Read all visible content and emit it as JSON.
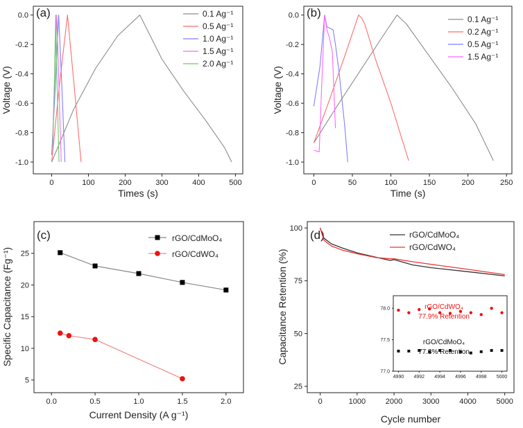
{
  "chart_data": [
    {
      "panel": "(a)",
      "type": "line",
      "xlabel": "Times (s)",
      "ylabel": "Voltage (V)",
      "xlim": [
        -50,
        520
      ],
      "ylim": [
        -1.08,
        0.06
      ],
      "xticks": [
        "0",
        "100",
        "200",
        "300",
        "400",
        "500"
      ],
      "yticks": [
        "0.0",
        "-0.2",
        "-0.4",
        "-0.6",
        "-0.8",
        "-1.0"
      ],
      "legend": [
        {
          "label": "0.1 Ag⁻¹",
          "color": "#8c8c8c"
        },
        {
          "label": "0.5 Ag⁻¹",
          "color": "#ff6b6b"
        },
        {
          "label": "1.0 Ag⁻¹",
          "color": "#7f7fff"
        },
        {
          "label": "1.5 Ag⁻¹",
          "color": "#ff66ff"
        },
        {
          "label": "2.0 Ag⁻¹",
          "color": "#5fcf5f"
        }
      ],
      "series": [
        {
          "name": "0.1 Ag-1",
          "color": "#8c8c8c",
          "x": [
            0,
            60,
            120,
            180,
            240,
            300,
            360,
            420,
            470,
            490
          ],
          "y": [
            -1.0,
            -0.64,
            -0.36,
            -0.14,
            0.0,
            -0.3,
            -0.52,
            -0.72,
            -0.9,
            -1.0
          ]
        },
        {
          "name": "0.5 Ag-1",
          "color": "#ff6b6b",
          "x": [
            0,
            20,
            43,
            60,
            80
          ],
          "y": [
            -1.0,
            -0.5,
            0.0,
            -0.45,
            -1.0
          ]
        },
        {
          "name": "1.0 Ag-1",
          "color": "#7f7fff",
          "x": [
            0,
            10,
            19,
            28,
            36
          ],
          "y": [
            -0.95,
            -0.48,
            0.0,
            -0.5,
            -1.0
          ]
        },
        {
          "name": "1.5 Ag-1",
          "color": "#ff66ff",
          "x": [
            2,
            8,
            14,
            20,
            26
          ],
          "y": [
            -0.9,
            -0.45,
            0.0,
            -0.5,
            -1.0
          ]
        },
        {
          "name": "2.0 Ag-1",
          "color": "#5fcf5f",
          "x": [
            3,
            8,
            11,
            15,
            20
          ],
          "y": [
            -0.9,
            -0.4,
            0.0,
            -0.5,
            -1.0
          ]
        }
      ]
    },
    {
      "panel": "(b)",
      "type": "line",
      "xlabel": "Time (s)",
      "ylabel": "Voltage (V)",
      "xlim": [
        -13,
        257
      ],
      "ylim": [
        -1.08,
        0.06
      ],
      "xticks": [
        "0",
        "50",
        "100",
        "150",
        "200",
        "250"
      ],
      "yticks": [
        "0.0",
        "-0.2",
        "-0.4",
        "-0.6",
        "-0.8",
        "-1.0"
      ],
      "legend": [
        {
          "label": "0.1 Ag⁻¹",
          "color": "#8c8c8c"
        },
        {
          "label": "0.2 Ag⁻¹",
          "color": "#ff6b6b"
        },
        {
          "label": "0.5 Ag⁻¹",
          "color": "#7f7fff"
        },
        {
          "label": "1.5 Ag⁻¹",
          "color": "#ff66ff"
        }
      ],
      "series": [
        {
          "name": "0.1 Ag-1",
          "color": "#8c8c8c",
          "x": [
            0,
            30,
            60,
            90,
            108,
            112,
            120,
            150,
            180,
            210,
            233
          ],
          "y": [
            -0.87,
            -0.62,
            -0.38,
            -0.14,
            0.0,
            -0.02,
            -0.06,
            -0.28,
            -0.5,
            -0.74,
            -0.99
          ]
        },
        {
          "name": "0.2 Ag-1",
          "color": "#ff6b6b",
          "x": [
            0,
            20,
            40,
            58,
            62,
            66,
            80,
            100,
            123
          ],
          "y": [
            -0.87,
            -0.58,
            -0.28,
            0.0,
            -0.02,
            -0.06,
            -0.3,
            -0.6,
            -0.99
          ]
        },
        {
          "name": "0.5 Ag-1",
          "color": "#7f7fff",
          "x": [
            0,
            8,
            14,
            17,
            25,
            28,
            33,
            40,
            44
          ],
          "y": [
            -0.62,
            -0.35,
            0.0,
            -0.08,
            -0.1,
            -0.2,
            -0.4,
            -0.75,
            -1.0
          ]
        },
        {
          "name": "1.5 Ag-1",
          "color": "#ff66ff",
          "x": [
            0,
            7,
            10,
            14,
            17,
            20,
            24,
            28
          ],
          "y": [
            -0.92,
            -0.93,
            -0.5,
            0.0,
            -0.1,
            -0.15,
            -0.25,
            -0.77
          ]
        }
      ]
    },
    {
      "panel": "(c)",
      "type": "line",
      "xlabel": "Current Density (A g⁻¹)",
      "ylabel": "Specific Capacitance (Fg⁻¹)",
      "xlim": [
        -0.2,
        2.2
      ],
      "ylim": [
        3,
        30
      ],
      "xticks": [
        "0.0",
        "0.5",
        "1.0",
        "1.5",
        "2.0"
      ],
      "yticks": [
        "5",
        "10",
        "15",
        "20",
        "25"
      ],
      "series": [
        {
          "name": "rGO/CdMoO₄",
          "color": "#000000",
          "line_color": "#888888",
          "marker": "square",
          "x": [
            0.1,
            0.5,
            1.0,
            1.5,
            2.0
          ],
          "y": [
            25.1,
            23.0,
            21.8,
            20.4,
            19.2
          ]
        },
        {
          "name": "rGO/CdWO₄",
          "color": "#ee1111",
          "line_color": "#ee8888",
          "marker": "circle",
          "x": [
            0.1,
            0.2,
            0.5,
            1.5
          ],
          "y": [
            12.4,
            12.0,
            11.4,
            5.2
          ]
        }
      ]
    },
    {
      "panel": "(d)",
      "type": "line",
      "xlabel": "Cycle number",
      "ylabel": "Capacitance Retention (%)",
      "xlim": [
        -350,
        5250
      ],
      "ylim": [
        22,
        103
      ],
      "xticks": [
        "0",
        "1000",
        "2000",
        "3000",
        "4000",
        "5000"
      ],
      "yticks": [
        "25",
        "50",
        "75",
        "100"
      ],
      "series": [
        {
          "name": "rGO/CdMoO₄",
          "color": "#333333",
          "x": [
            0,
            100,
            300,
            600,
            1000,
            1500,
            1900,
            2000,
            2500,
            3000,
            4000,
            5000
          ],
          "y": [
            100,
            95.2,
            92.5,
            90.5,
            88.2,
            86.2,
            84.6,
            85.0,
            82.5,
            81.2,
            79.3,
            77.3
          ]
        },
        {
          "name": "rGO/CdWO₄",
          "color": "#ee3333",
          "x": [
            0,
            100,
            300,
            600,
            1000,
            1500,
            1900,
            2000,
            2500,
            3000,
            4000,
            5000
          ],
          "y": [
            100,
            94.2,
            91.5,
            89.5,
            87.8,
            86.0,
            85.4,
            85.4,
            84.0,
            82.8,
            80.4,
            77.9
          ]
        }
      ],
      "inset": {
        "xlim": [
          4989.5,
          5000.5
        ],
        "ylim": [
          77.0,
          78.2
        ],
        "xticks": [
          "4990",
          "4992",
          "4994",
          "4996",
          "4998",
          "5000"
        ],
        "yticks": [
          "77.0",
          "77.5",
          "78.0"
        ],
        "series": [
          {
            "name": "rGO/CdWO₄",
            "color": "#ee1111",
            "x": [
              4990,
              4991,
              4992,
              4993,
              4994,
              4995,
              4996,
              4997,
              4998,
              4999,
              5000
            ],
            "y": [
              77.97,
              77.93,
              77.98,
              77.99,
              77.93,
              77.92,
              77.95,
              77.93,
              77.9,
              78.0,
              77.93
            ]
          },
          {
            "name": "rGO/CdMoO₄",
            "color": "#111111",
            "x": [
              4990,
              4991,
              4992,
              4993,
              4994,
              4995,
              4996,
              4997,
              4998,
              4999,
              5000
            ],
            "y": [
              77.32,
              77.32,
              77.33,
              77.31,
              77.33,
              77.33,
              77.31,
              77.29,
              77.31,
              77.33,
              77.33
            ]
          }
        ],
        "label_cdwo": "rGO/CdWO₄",
        "retention_cdwo": "77.9% Retention",
        "label_cdmo": "rGO/CdMoO₄",
        "retention_cdmo": "77.3% Retention"
      }
    }
  ]
}
